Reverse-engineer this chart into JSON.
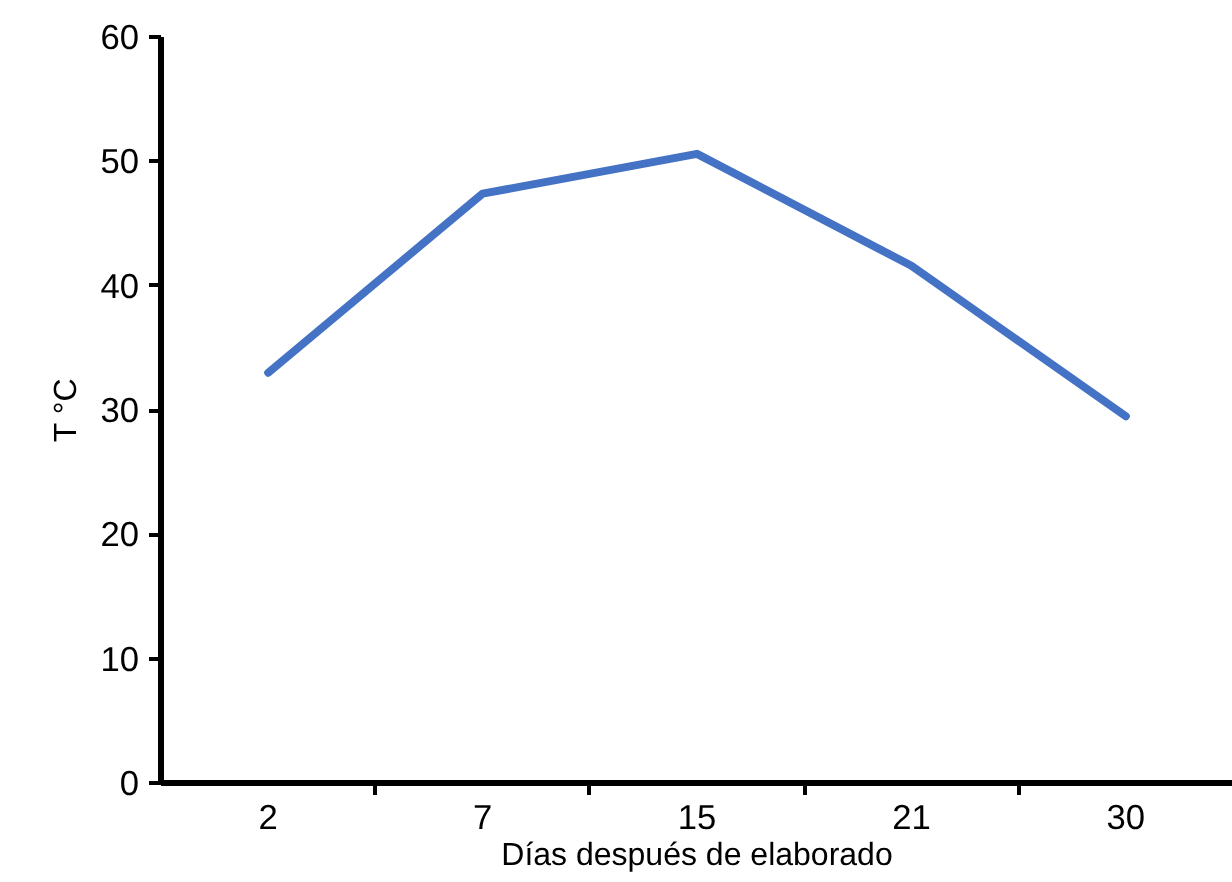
{
  "chart_data": {
    "type": "line",
    "xlabel": "Días después de elaborado",
    "ylabel": "T °C",
    "categories": [
      "2",
      "7",
      "15",
      "21",
      "30"
    ],
    "series": [
      {
        "color": "#4472c4",
        "values": [
          33.0,
          47.4,
          50.6,
          41.6,
          29.5
        ]
      }
    ],
    "ylim": [
      0,
      60
    ],
    "yticks": [
      0,
      10,
      20,
      30,
      40,
      50,
      60
    ],
    "grid": false,
    "marker": "none",
    "line_style": "solid"
  }
}
